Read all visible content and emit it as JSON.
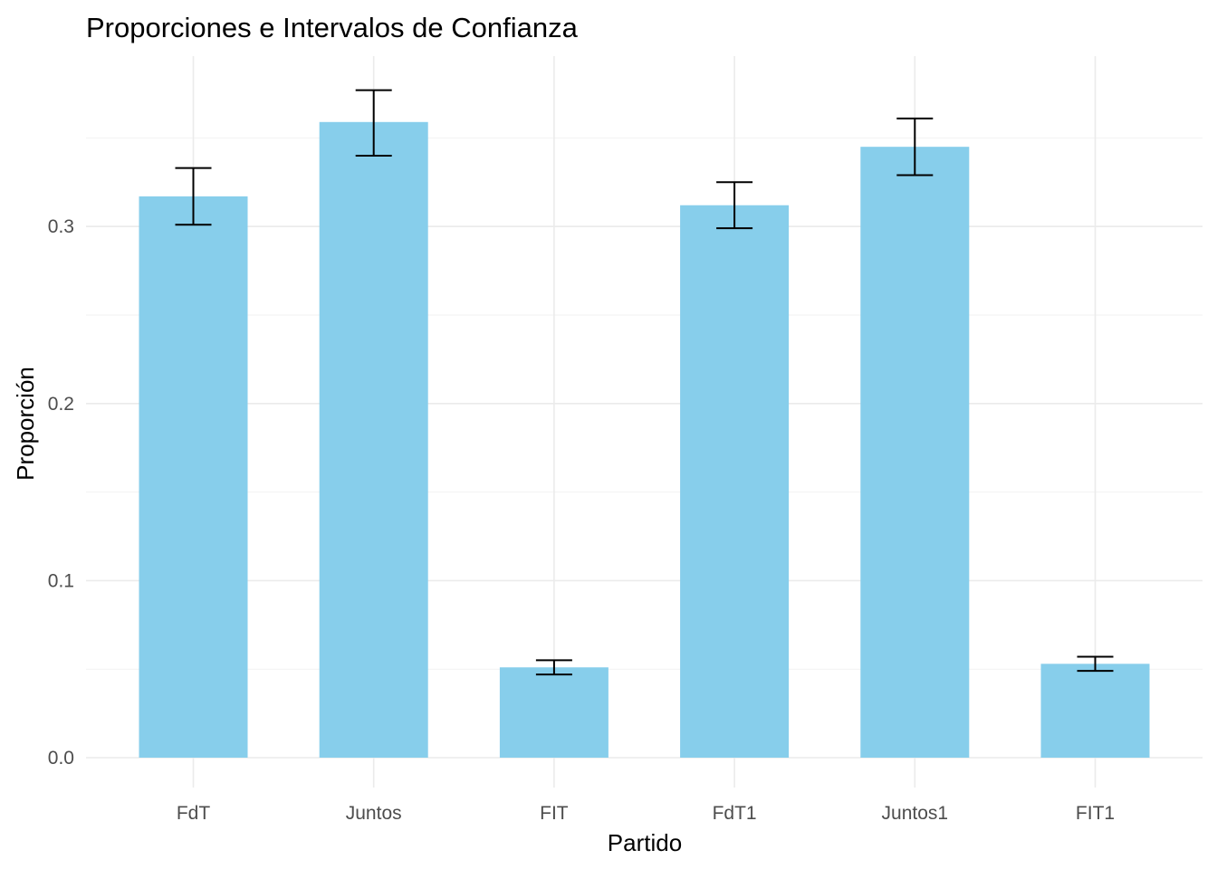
{
  "chart_data": {
    "type": "bar",
    "title": "Proporciones e Intervalos de Confianza",
    "xlabel": "Partido",
    "ylabel": "Proporción",
    "categories": [
      "FdT",
      "Juntos",
      "FIT",
      "FdT1",
      "Juntos1",
      "FIT1"
    ],
    "values": [
      0.317,
      0.359,
      0.051,
      0.312,
      0.345,
      0.053
    ],
    "ci_lower": [
      0.301,
      0.34,
      0.047,
      0.299,
      0.329,
      0.049
    ],
    "ci_upper": [
      0.333,
      0.377,
      0.055,
      0.325,
      0.361,
      0.057
    ],
    "ylim": [
      0,
      0.39
    ],
    "yticks": [
      0.0,
      0.1,
      0.2,
      0.3
    ],
    "ytick_labels": [
      "0.0",
      "0.1",
      "0.2",
      "0.3"
    ],
    "grid": true,
    "legend": "none",
    "bar_color": "#87CEEB",
    "errorbar_color": "#000000"
  }
}
